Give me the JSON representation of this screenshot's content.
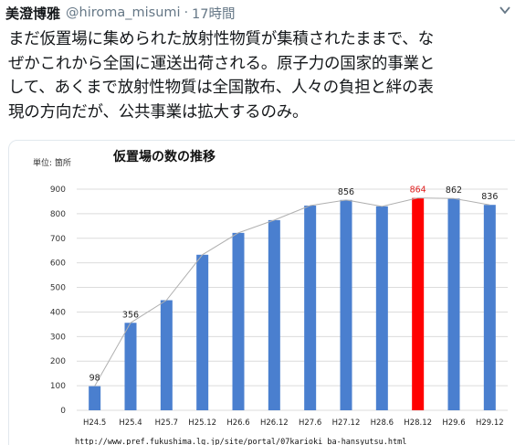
{
  "tweet": {
    "author_name": "美澄博雅",
    "handle": "@hiroma_misumi",
    "separator": "·",
    "time": "17時間",
    "text_lines": [
      "まだ仮置場に集められた放射性物質が集積されたままで、な",
      "ぜかこれから全国に運送出荷される。原子力の国家的事業と",
      "して、あくまで放射性物質は全国散布、人々の負担と絆の表",
      "現の方向だが、公共事業は拡大するのみ。"
    ]
  },
  "chart_data": {
    "type": "bar",
    "title": "仮置場の数の推移",
    "unit_label": "単位: 箇所",
    "categories": [
      "H24.5",
      "H25.4",
      "H25.7",
      "H25.12",
      "H26.6",
      "H26.12",
      "H27.6",
      "H27.12",
      "H28.6",
      "H28.12",
      "H29.6",
      "H29.12"
    ],
    "values": [
      98,
      356,
      448,
      633,
      722,
      774,
      833,
      856,
      830,
      864,
      862,
      836
    ],
    "data_labels": [
      "98",
      "356",
      "",
      "",
      "",
      "",
      "",
      "856",
      "",
      "864",
      "862",
      "836"
    ],
    "highlight_index": 9,
    "bar_color": "#4a7fcf",
    "highlight_color": "#ff0000",
    "highlight_label_color": "#e02020",
    "line_color": "#b0b0b0",
    "ylim": [
      0,
      900
    ],
    "yticks": [
      0,
      100,
      200,
      300,
      400,
      500,
      600,
      700,
      800,
      900
    ],
    "grid": true,
    "source_url": "http://www.pref.fukushima.lg.jp/site/portal/07karioki ba-hansyutsu.html"
  }
}
